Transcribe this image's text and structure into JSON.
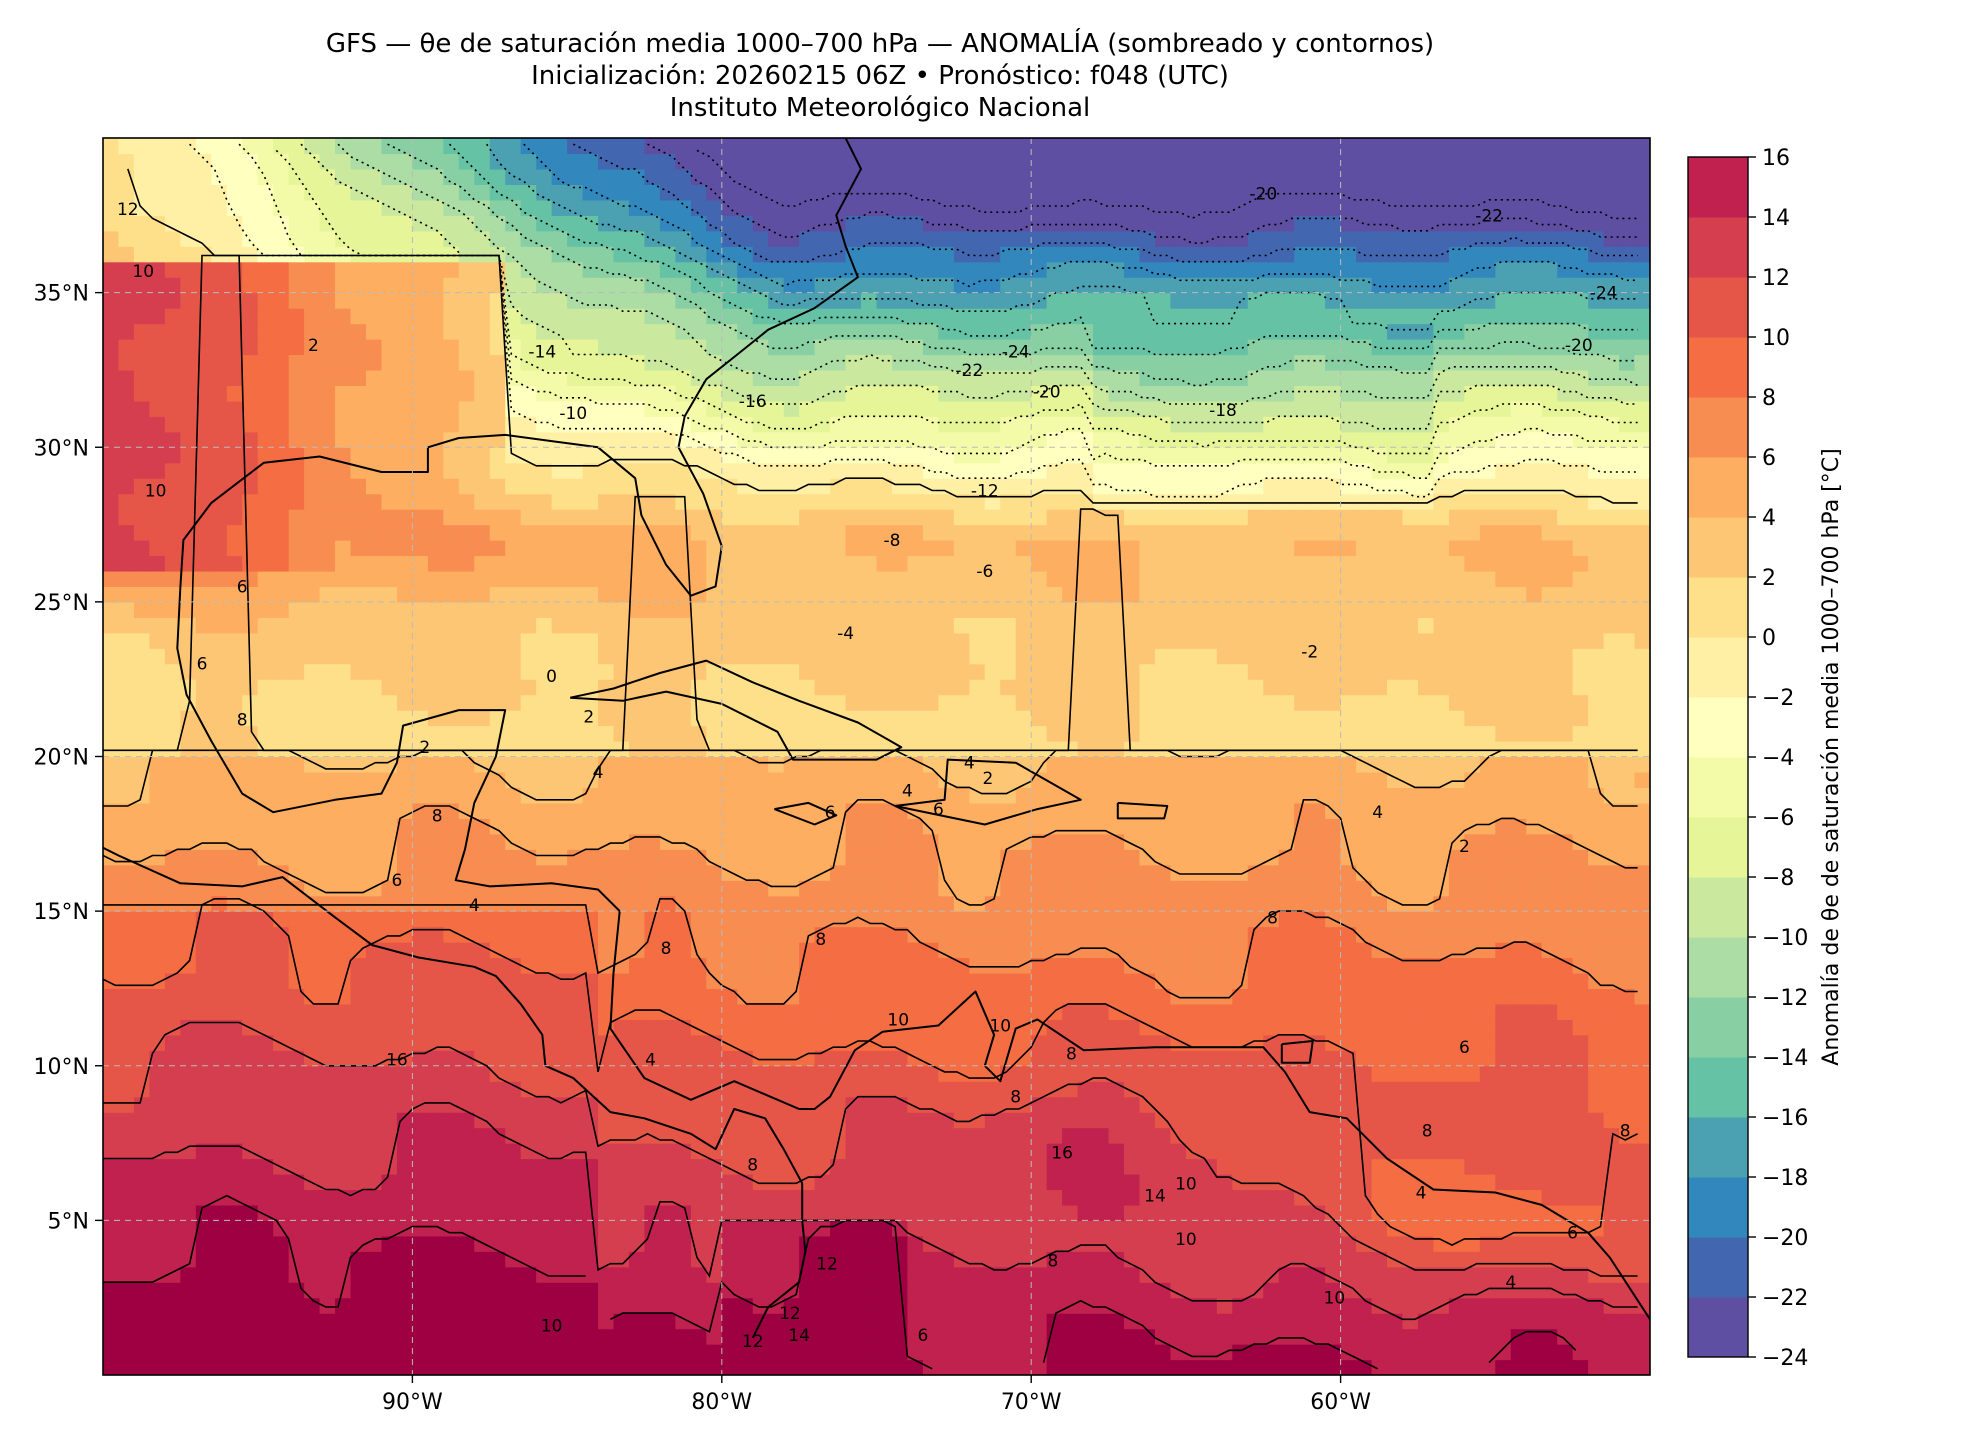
{
  "header": {
    "title_line1": "GFS — θe de saturación media 1000–700 hPa — ANOMALÍA (sombreado y contornos)",
    "title_line2": "Inicialización: 20260215 06Z   •   Pronóstico: f048 (UTC)",
    "title_line3": "Instituto Meteorológico Nacional"
  },
  "map": {
    "lon_range": [
      -100,
      -50
    ],
    "lat_range": [
      0,
      40
    ],
    "lon_tick_labels": [
      {
        "lon": -90,
        "label": "90°W"
      },
      {
        "lon": -80,
        "label": "80°W"
      },
      {
        "lon": -70,
        "label": "70°W"
      },
      {
        "lon": -60,
        "label": "60°W"
      }
    ],
    "lat_tick_labels": [
      {
        "lat": 35,
        "label": "35°N"
      },
      {
        "lat": 30,
        "label": "30°N"
      },
      {
        "lat": 25,
        "label": "25°N"
      },
      {
        "lat": 20,
        "label": "20°N"
      },
      {
        "lat": 15,
        "label": "15°N"
      },
      {
        "lat": 10,
        "label": "10°N"
      },
      {
        "lat": 5,
        "label": "5°N"
      }
    ],
    "gridlines": "dashed",
    "contour_labels": [
      {
        "text": "-20",
        "lon": -62.5,
        "lat": 38.2
      },
      {
        "text": "-22",
        "lon": -55.2,
        "lat": 37.5
      },
      {
        "text": "-24",
        "lon": -51.5,
        "lat": 35.0
      },
      {
        "text": "-20",
        "lon": -52.3,
        "lat": 33.3
      },
      {
        "text": "-24",
        "lon": -70.5,
        "lat": 33.1
      },
      {
        "text": "-22",
        "lon": -72.0,
        "lat": 32.5
      },
      {
        "text": "-20",
        "lon": -69.5,
        "lat": 31.8
      },
      {
        "text": "-18",
        "lon": -63.8,
        "lat": 31.2
      },
      {
        "text": "-16",
        "lon": -79.0,
        "lat": 31.5
      },
      {
        "text": "-14",
        "lon": -85.8,
        "lat": 33.1
      },
      {
        "text": "-10",
        "lon": -84.8,
        "lat": 31.1
      },
      {
        "text": "-12",
        "lon": -71.5,
        "lat": 28.6
      },
      {
        "text": "-8",
        "lon": -74.5,
        "lat": 27.0
      },
      {
        "text": "-6",
        "lon": -71.5,
        "lat": 26.0
      },
      {
        "text": "-4",
        "lon": -76.0,
        "lat": 24.0
      },
      {
        "text": "-2",
        "lon": -61.0,
        "lat": 23.4
      },
      {
        "text": "0",
        "lon": -85.5,
        "lat": 22.6
      },
      {
        "text": "2",
        "lon": -84.3,
        "lat": 21.3
      },
      {
        "text": "2",
        "lon": -89.6,
        "lat": 20.3
      },
      {
        "text": "2",
        "lon": -93.2,
        "lat": 33.3
      },
      {
        "text": "2",
        "lon": -71.4,
        "lat": 19.3
      },
      {
        "text": "2",
        "lon": -56.0,
        "lat": 17.1
      },
      {
        "text": "4",
        "lon": -84.0,
        "lat": 19.5
      },
      {
        "text": "4",
        "lon": -72.0,
        "lat": 19.8
      },
      {
        "text": "4",
        "lon": -74.0,
        "lat": 18.9
      },
      {
        "text": "4",
        "lon": -58.8,
        "lat": 18.2
      },
      {
        "text": "4",
        "lon": -88.0,
        "lat": 15.2
      },
      {
        "text": "4",
        "lon": -82.3,
        "lat": 10.2
      },
      {
        "text": "4",
        "lon": -57.4,
        "lat": 5.9
      },
      {
        "text": "4",
        "lon": -54.5,
        "lat": 3.0
      },
      {
        "text": "6",
        "lon": -95.5,
        "lat": 25.5
      },
      {
        "text": "6",
        "lon": -96.8,
        "lat": 23.0
      },
      {
        "text": "6",
        "lon": -76.5,
        "lat": 18.2
      },
      {
        "text": "6",
        "lon": -73.0,
        "lat": 18.3
      },
      {
        "text": "6",
        "lon": -90.5,
        "lat": 16.0
      },
      {
        "text": "6",
        "lon": -56.0,
        "lat": 10.6
      },
      {
        "text": "6",
        "lon": -52.5,
        "lat": 4.6
      },
      {
        "text": "6",
        "lon": -73.5,
        "lat": 1.3
      },
      {
        "text": "8",
        "lon": -95.5,
        "lat": 21.2
      },
      {
        "text": "8",
        "lon": -89.2,
        "lat": 18.1
      },
      {
        "text": "8",
        "lon": -76.8,
        "lat": 14.1
      },
      {
        "text": "8",
        "lon": -81.8,
        "lat": 13.8
      },
      {
        "text": "8",
        "lon": -62.2,
        "lat": 14.8
      },
      {
        "text": "8",
        "lon": -68.7,
        "lat": 10.4
      },
      {
        "text": "8",
        "lon": -70.5,
        "lat": 9.0
      },
      {
        "text": "8",
        "lon": -57.2,
        "lat": 7.9
      },
      {
        "text": "8",
        "lon": -50.8,
        "lat": 7.9
      },
      {
        "text": "8",
        "lon": -79.0,
        "lat": 6.8
      },
      {
        "text": "8",
        "lon": -69.3,
        "lat": 3.7
      },
      {
        "text": "10",
        "lon": -74.3,
        "lat": 11.5
      },
      {
        "text": "10",
        "lon": -71.0,
        "lat": 11.3
      },
      {
        "text": "10",
        "lon": -65.0,
        "lat": 6.2
      },
      {
        "text": "10",
        "lon": -65.0,
        "lat": 4.4
      },
      {
        "text": "10",
        "lon": -60.2,
        "lat": 2.5
      },
      {
        "text": "10",
        "lon": -85.5,
        "lat": 1.6
      },
      {
        "text": "10",
        "lon": -98.3,
        "lat": 28.6
      },
      {
        "text": "10",
        "lon": -98.7,
        "lat": 35.7
      },
      {
        "text": "12",
        "lon": -76.6,
        "lat": 3.6
      },
      {
        "text": "12",
        "lon": -77.8,
        "lat": 2.0
      },
      {
        "text": "12",
        "lon": -79.0,
        "lat": 1.1
      },
      {
        "text": "12",
        "lon": -99.2,
        "lat": 37.7
      },
      {
        "text": "14",
        "lon": -66.0,
        "lat": 5.8
      },
      {
        "text": "14",
        "lon": -77.5,
        "lat": 1.3
      },
      {
        "text": "16",
        "lon": -69.0,
        "lat": 7.2
      },
      {
        "text": "16",
        "lon": -90.5,
        "lat": 10.2
      }
    ]
  },
  "colorbar": {
    "label": "Anomalía de θe de saturación media 1000–700 hPa [°C]",
    "levels": [
      -24,
      -22,
      -20,
      -18,
      -16,
      -14,
      -12,
      -10,
      -8,
      -6,
      -4,
      -2,
      0,
      2,
      4,
      6,
      8,
      10,
      12,
      14,
      16
    ],
    "tick_labels": [
      "16",
      "14",
      "12",
      "10",
      "8",
      "6",
      "4",
      "2",
      "0",
      "−2",
      "−4",
      "−6",
      "−8",
      "−10",
      "−12",
      "−14",
      "−16",
      "−18",
      "−20",
      "−22",
      "−24"
    ],
    "colors": [
      "#5e4fa2",
      "#4267b0",
      "#3288bd",
      "#4ba0b1",
      "#66c2a5",
      "#88cfa4",
      "#abdda4",
      "#cbe99e",
      "#e6f598",
      "#f4fba8",
      "#ffffbf",
      "#fff0a6",
      "#fee08b",
      "#fdc675",
      "#fdae61",
      "#f88d52",
      "#f46d43",
      "#e55649",
      "#d53e4f",
      "#c0214e",
      "#9e0142"
    ]
  }
}
